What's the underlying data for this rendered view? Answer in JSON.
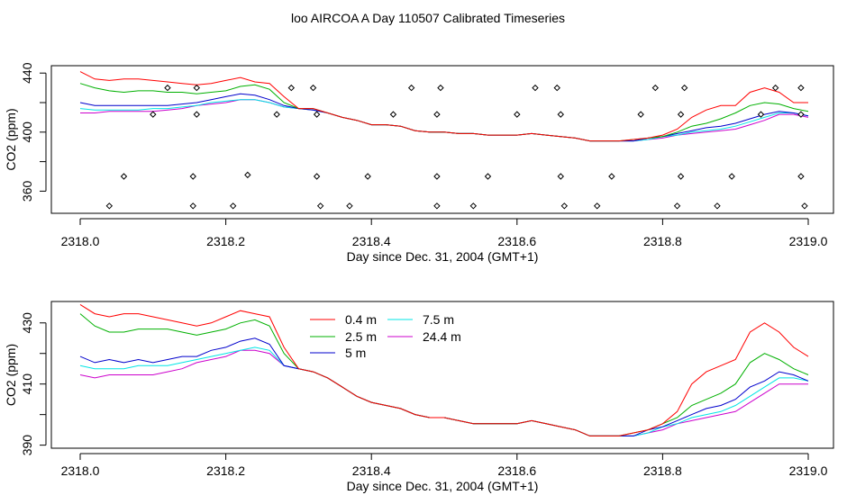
{
  "page": {
    "title": "loo AIRCOA A  Day 110507  Calibrated Timeseries"
  },
  "colors": {
    "series": [
      "#ff0000",
      "#00b000",
      "#0000cc",
      "#00e5e5",
      "#cc00cc"
    ],
    "points": "#000000"
  },
  "chart_data": [
    {
      "type": "line",
      "panel": "top",
      "xlabel": "Day since Dec. 31, 2004 (GMT+1)",
      "ylabel": "CO2 (ppm)",
      "xlim": [
        2318.0,
        2319.0
      ],
      "ylim": [
        345,
        445
      ],
      "xticks": [
        "2318.0",
        "2318.2",
        "2318.4",
        "2318.6",
        "2318.8",
        "2319.0"
      ],
      "yticks": [
        "360",
        "400",
        "440"
      ],
      "yticks_minor": [
        380,
        420
      ],
      "x": [
        2318.0,
        2318.02,
        2318.04,
        2318.06,
        2318.08,
        2318.1,
        2318.12,
        2318.14,
        2318.16,
        2318.18,
        2318.2,
        2318.22,
        2318.24,
        2318.26,
        2318.28,
        2318.3,
        2318.32,
        2318.34,
        2318.36,
        2318.38,
        2318.4,
        2318.42,
        2318.44,
        2318.46,
        2318.48,
        2318.5,
        2318.52,
        2318.54,
        2318.56,
        2318.58,
        2318.6,
        2318.62,
        2318.64,
        2318.66,
        2318.68,
        2318.7,
        2318.72,
        2318.74,
        2318.76,
        2318.78,
        2318.8,
        2318.82,
        2318.84,
        2318.86,
        2318.88,
        2318.9,
        2318.92,
        2318.94,
        2318.96,
        2318.98,
        2319.0
      ],
      "series": [
        {
          "values": [
            441,
            436,
            435,
            436,
            436,
            435,
            434,
            433,
            432,
            433,
            435,
            437,
            434,
            433,
            424,
            416,
            416,
            413,
            410,
            408,
            405,
            405,
            404,
            401,
            400,
            400,
            399,
            399,
            398,
            398,
            398,
            399,
            398,
            397,
            396,
            394,
            394,
            394,
            395,
            396,
            398,
            402,
            410,
            415,
            418,
            418,
            427,
            430,
            427,
            420,
            420
          ]
        },
        {
          "values": [
            433,
            430,
            428,
            427,
            428,
            428,
            427,
            427,
            426,
            427,
            428,
            431,
            432,
            429,
            420,
            416,
            416,
            413,
            410,
            408,
            405,
            405,
            404,
            401,
            400,
            400,
            399,
            399,
            398,
            398,
            398,
            399,
            398,
            397,
            396,
            394,
            394,
            394,
            395,
            396,
            397,
            400,
            404,
            406,
            409,
            413,
            418,
            420,
            419,
            416,
            414
          ]
        },
        {
          "values": [
            420,
            418,
            418,
            418,
            418,
            418,
            418,
            419,
            420,
            422,
            424,
            426,
            425,
            422,
            418,
            416,
            415,
            413,
            410,
            408,
            405,
            405,
            404,
            401,
            400,
            400,
            399,
            399,
            398,
            398,
            398,
            399,
            398,
            397,
            396,
            394,
            394,
            394,
            394,
            396,
            397,
            399,
            401,
            403,
            404,
            406,
            409,
            412,
            414,
            413,
            411
          ]
        },
        {
          "values": [
            416,
            415,
            415,
            415,
            415,
            416,
            416,
            417,
            418,
            420,
            421,
            422,
            422,
            420,
            417,
            416,
            415,
            413,
            410,
            408,
            405,
            405,
            404,
            401,
            400,
            400,
            399,
            399,
            398,
            398,
            398,
            399,
            398,
            397,
            396,
            394,
            394,
            394,
            394,
            395,
            397,
            398,
            400,
            401,
            402,
            404,
            407,
            410,
            413,
            413,
            411
          ]
        },
        {
          "values": [
            413,
            413,
            414,
            414,
            414,
            414,
            415,
            416,
            418,
            419,
            420,
            422,
            422,
            420,
            417,
            416,
            415,
            413,
            410,
            408,
            405,
            405,
            404,
            401,
            400,
            400,
            399,
            399,
            398,
            398,
            398,
            399,
            398,
            397,
            396,
            394,
            394,
            394,
            394,
            395,
            396,
            398,
            399,
            400,
            401,
            402,
            405,
            408,
            412,
            412,
            410
          ]
        }
      ],
      "points": [
        {
          "x": 2318.04,
          "y": 350
        },
        {
          "x": 2318.06,
          "y": 370
        },
        {
          "x": 2318.12,
          "y": 430
        },
        {
          "x": 2318.1,
          "y": 412
        },
        {
          "x": 2318.155,
          "y": 350
        },
        {
          "x": 2318.155,
          "y": 370
        },
        {
          "x": 2318.16,
          "y": 430
        },
        {
          "x": 2318.16,
          "y": 412
        },
        {
          "x": 2318.21,
          "y": 350
        },
        {
          "x": 2318.23,
          "y": 371
        },
        {
          "x": 2318.27,
          "y": 412
        },
        {
          "x": 2318.29,
          "y": 430
        },
        {
          "x": 2318.32,
          "y": 430
        },
        {
          "x": 2318.325,
          "y": 412
        },
        {
          "x": 2318.325,
          "y": 370
        },
        {
          "x": 2318.33,
          "y": 350
        },
        {
          "x": 2318.37,
          "y": 350
        },
        {
          "x": 2318.395,
          "y": 370
        },
        {
          "x": 2318.43,
          "y": 412
        },
        {
          "x": 2318.455,
          "y": 430
        },
        {
          "x": 2318.49,
          "y": 350
        },
        {
          "x": 2318.49,
          "y": 370
        },
        {
          "x": 2318.49,
          "y": 412
        },
        {
          "x": 2318.495,
          "y": 430
        },
        {
          "x": 2318.54,
          "y": 350
        },
        {
          "x": 2318.56,
          "y": 370
        },
        {
          "x": 2318.6,
          "y": 412
        },
        {
          "x": 2318.625,
          "y": 430
        },
        {
          "x": 2318.655,
          "y": 430
        },
        {
          "x": 2318.66,
          "y": 412
        },
        {
          "x": 2318.66,
          "y": 370
        },
        {
          "x": 2318.665,
          "y": 350
        },
        {
          "x": 2318.71,
          "y": 350
        },
        {
          "x": 2318.73,
          "y": 370
        },
        {
          "x": 2318.77,
          "y": 412
        },
        {
          "x": 2318.79,
          "y": 430
        },
        {
          "x": 2318.82,
          "y": 350
        },
        {
          "x": 2318.825,
          "y": 370
        },
        {
          "x": 2318.825,
          "y": 412
        },
        {
          "x": 2318.83,
          "y": 430
        },
        {
          "x": 2318.875,
          "y": 350
        },
        {
          "x": 2318.895,
          "y": 370
        },
        {
          "x": 2318.935,
          "y": 412
        },
        {
          "x": 2318.955,
          "y": 430
        },
        {
          "x": 2318.99,
          "y": 430
        },
        {
          "x": 2318.99,
          "y": 412
        },
        {
          "x": 2318.99,
          "y": 370
        },
        {
          "x": 2318.995,
          "y": 350
        }
      ]
    },
    {
      "type": "line",
      "panel": "bottom",
      "xlabel": "Day since Dec. 31, 2004 (GMT+1)",
      "ylabel": "CO2 (ppm)",
      "xlim": [
        2318.0,
        2319.0
      ],
      "ylim": [
        389,
        437
      ],
      "xticks": [
        "2318.0",
        "2318.2",
        "2318.4",
        "2318.6",
        "2318.8",
        "2319.0"
      ],
      "yticks": [
        "390",
        "410",
        "430"
      ],
      "yticks_minor": [
        400,
        420
      ],
      "legend": {
        "position": "top-center",
        "entries": [
          "0.4 m",
          "2.5 m",
          "5 m",
          "7.5 m",
          "24.4 m"
        ]
      },
      "x": [
        2318.0,
        2318.02,
        2318.04,
        2318.06,
        2318.08,
        2318.1,
        2318.12,
        2318.14,
        2318.16,
        2318.18,
        2318.2,
        2318.22,
        2318.24,
        2318.26,
        2318.28,
        2318.3,
        2318.32,
        2318.34,
        2318.36,
        2318.38,
        2318.4,
        2318.42,
        2318.44,
        2318.46,
        2318.48,
        2318.5,
        2318.52,
        2318.54,
        2318.56,
        2318.58,
        2318.6,
        2318.62,
        2318.64,
        2318.66,
        2318.68,
        2318.7,
        2318.72,
        2318.74,
        2318.76,
        2318.78,
        2318.8,
        2318.82,
        2318.84,
        2318.86,
        2318.88,
        2318.9,
        2318.92,
        2318.94,
        2318.96,
        2318.98,
        2319.0
      ],
      "series": [
        {
          "name": "0.4 m",
          "values": [
            436,
            433,
            432,
            433,
            433,
            432,
            431,
            430,
            429,
            430,
            432,
            434,
            433,
            432,
            422,
            415,
            414,
            412,
            409,
            406,
            404,
            403,
            402,
            400,
            399,
            399,
            398,
            397,
            397,
            397,
            397,
            398,
            397,
            396,
            395,
            393,
            393,
            393,
            394,
            395,
            397,
            401,
            410,
            414,
            416,
            418,
            427,
            430,
            427,
            422,
            419
          ]
        },
        {
          "name": "2.5 m",
          "values": [
            433,
            429,
            427,
            427,
            428,
            428,
            428,
            427,
            426,
            427,
            428,
            430,
            431,
            429,
            420,
            415,
            414,
            412,
            409,
            406,
            404,
            403,
            402,
            400,
            399,
            399,
            398,
            397,
            397,
            397,
            397,
            398,
            397,
            396,
            395,
            393,
            393,
            393,
            394,
            395,
            397,
            399,
            403,
            405,
            407,
            410,
            417,
            420,
            418,
            415,
            413
          ]
        },
        {
          "name": "5 m",
          "values": [
            419,
            417,
            418,
            417,
            418,
            417,
            418,
            419,
            419,
            421,
            422,
            424,
            425,
            423,
            416,
            415,
            414,
            412,
            409,
            406,
            404,
            403,
            402,
            400,
            399,
            399,
            398,
            397,
            397,
            397,
            397,
            398,
            397,
            396,
            395,
            393,
            393,
            393,
            393,
            395,
            396,
            398,
            400,
            402,
            403,
            405,
            409,
            411,
            414,
            413,
            411
          ]
        },
        {
          "name": "7.5 m",
          "values": [
            416,
            415,
            415,
            415,
            416,
            416,
            416,
            417,
            418,
            419,
            420,
            421,
            422,
            421,
            416,
            415,
            414,
            412,
            409,
            406,
            404,
            403,
            402,
            400,
            399,
            399,
            398,
            397,
            397,
            397,
            397,
            398,
            397,
            396,
            395,
            393,
            393,
            393,
            393,
            394,
            396,
            397,
            399,
            400,
            401,
            403,
            406,
            409,
            412,
            412,
            411
          ]
        },
        {
          "name": "24.4 m",
          "values": [
            413,
            412,
            413,
            413,
            413,
            413,
            414,
            415,
            417,
            418,
            419,
            421,
            421,
            420,
            416,
            415,
            414,
            412,
            409,
            406,
            404,
            403,
            402,
            400,
            399,
            399,
            398,
            397,
            397,
            397,
            397,
            398,
            397,
            396,
            395,
            393,
            393,
            393,
            393,
            394,
            395,
            397,
            398,
            399,
            400,
            401,
            404,
            407,
            410,
            410,
            410
          ]
        }
      ]
    }
  ]
}
